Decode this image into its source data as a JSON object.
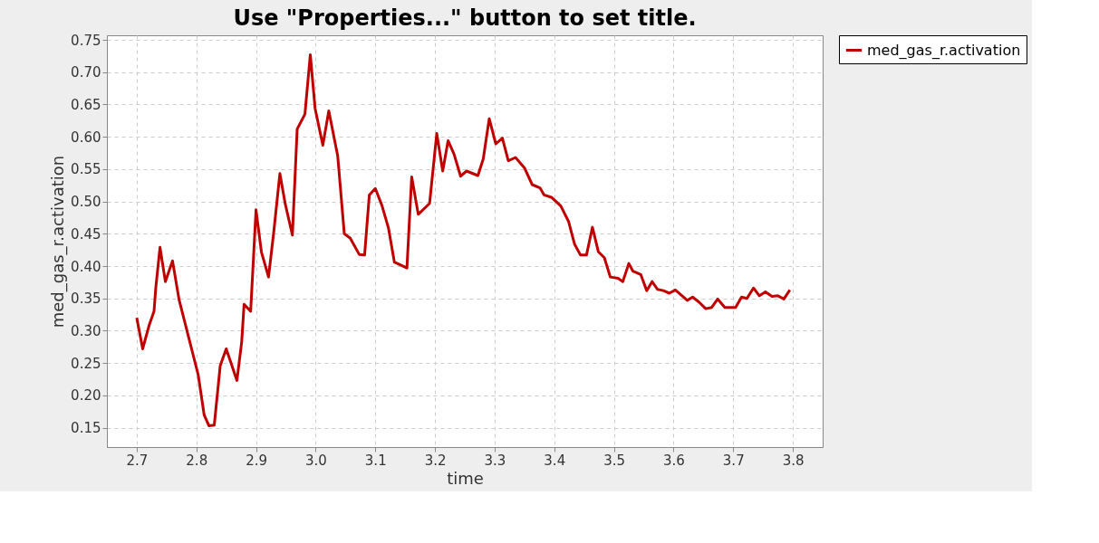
{
  "chart_data": {
    "type": "line",
    "title": "Use \"Properties...\" button to set title.",
    "xlabel": "time",
    "ylabel": "med_gas_r.activation",
    "xlim": [
      2.65,
      3.85
    ],
    "ylim": [
      0.12,
      0.757
    ],
    "xticks": [
      2.7,
      2.8,
      2.9,
      {
        "value": 3.0,
        "label": "3.0"
      },
      3.1,
      3.2,
      3.3,
      3.4,
      3.5,
      3.6,
      3.7,
      3.8
    ],
    "yticks": [
      {
        "value": 0.15,
        "label": "0.15"
      },
      {
        "value": 0.2,
        "label": "0.20"
      },
      {
        "value": 0.25,
        "label": "0.25"
      },
      {
        "value": 0.3,
        "label": "0.30"
      },
      {
        "value": 0.35,
        "label": "0.35"
      },
      {
        "value": 0.4,
        "label": "0.40"
      },
      {
        "value": 0.45,
        "label": "0.45"
      },
      {
        "value": 0.5,
        "label": "0.50"
      },
      {
        "value": 0.55,
        "label": "0.55"
      },
      {
        "value": 0.6,
        "label": "0.60"
      },
      {
        "value": 0.65,
        "label": "0.65"
      },
      {
        "value": 0.7,
        "label": "0.70"
      },
      {
        "value": 0.75,
        "label": "0.75"
      }
    ],
    "grid": true,
    "legend": "right",
    "line_style": "solid",
    "marker": "none",
    "series": [
      {
        "name": "med_gas_r.activation",
        "color": "#c00000",
        "x": [
          2.7,
          2.71,
          2.721,
          2.729,
          2.732,
          2.739,
          2.748,
          2.76,
          2.771,
          2.79,
          2.803,
          2.813,
          2.821,
          2.83,
          2.84,
          2.85,
          2.868,
          2.876,
          2.88,
          2.891,
          2.9,
          2.909,
          2.921,
          2.93,
          2.94,
          2.949,
          2.961,
          2.969,
          2.982,
          2.991,
          2.999,
          3.012,
          3.022,
          3.037,
          3.048,
          3.058,
          3.073,
          3.082,
          3.09,
          3.1,
          3.111,
          3.122,
          3.132,
          3.153,
          3.161,
          3.172,
          3.191,
          3.203,
          3.213,
          3.222,
          3.232,
          3.243,
          3.253,
          3.272,
          3.281,
          3.291,
          3.302,
          3.313,
          3.323,
          3.335,
          3.35,
          3.363,
          3.376,
          3.383,
          3.396,
          3.411,
          3.424,
          3.434,
          3.444,
          3.454,
          3.464,
          3.474,
          3.484,
          3.494,
          3.507,
          3.515,
          3.525,
          3.532,
          3.545,
          3.555,
          3.564,
          3.573,
          3.583,
          3.593,
          3.603,
          3.613,
          3.623,
          3.632,
          3.643,
          3.654,
          3.664,
          3.674,
          3.686,
          3.704,
          3.714,
          3.723,
          3.734,
          3.744,
          3.754,
          3.765,
          3.775,
          3.785,
          3.795
        ],
        "values": [
          0.32,
          0.272,
          0.309,
          0.33,
          0.367,
          0.429,
          0.376,
          0.408,
          0.348,
          0.279,
          0.232,
          0.17,
          0.153,
          0.154,
          0.246,
          0.272,
          0.223,
          0.283,
          0.341,
          0.33,
          0.487,
          0.422,
          0.383,
          0.455,
          0.543,
          0.496,
          0.448,
          0.612,
          0.635,
          0.727,
          0.644,
          0.587,
          0.64,
          0.57,
          0.45,
          0.443,
          0.418,
          0.417,
          0.51,
          0.52,
          0.494,
          0.459,
          0.406,
          0.397,
          0.538,
          0.48,
          0.497,
          0.605,
          0.547,
          0.594,
          0.573,
          0.539,
          0.547,
          0.54,
          0.566,
          0.628,
          0.589,
          0.598,
          0.563,
          0.568,
          0.552,
          0.526,
          0.521,
          0.51,
          0.506,
          0.493,
          0.469,
          0.434,
          0.417,
          0.417,
          0.46,
          0.422,
          0.413,
          0.383,
          0.381,
          0.376,
          0.404,
          0.392,
          0.387,
          0.362,
          0.376,
          0.364,
          0.362,
          0.358,
          0.363,
          0.355,
          0.347,
          0.352,
          0.344,
          0.334,
          0.336,
          0.349,
          0.336,
          0.336,
          0.352,
          0.35,
          0.366,
          0.354,
          0.36,
          0.353,
          0.354,
          0.349,
          0.363
        ]
      }
    ]
  }
}
